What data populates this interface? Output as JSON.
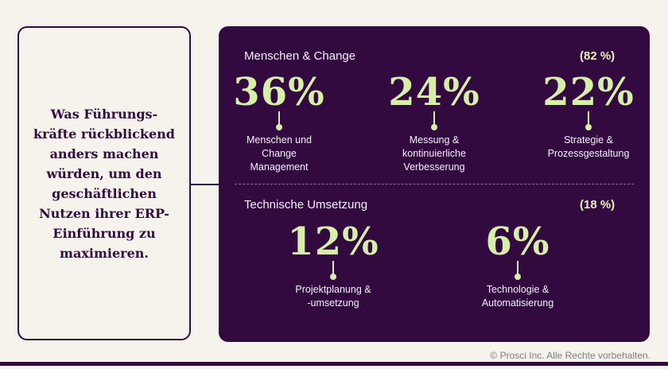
{
  "question": "Was Führungs-kräfte rückblickend anders machen würden, um den geschäftlichen Nutzen ihrer ERP-Einführung zu maximieren.",
  "section1": {
    "title": "Menschen & Change",
    "pct": "(82 %)",
    "items": [
      {
        "value": "36%",
        "label": "Menschen und Change Management"
      },
      {
        "value": "24%",
        "label": "Messung & kontinuierliche Verbesserung"
      },
      {
        "value": "22%",
        "label": "Strategie & Prozessgestaltung"
      }
    ]
  },
  "section2": {
    "title": "Technische Umsetzung",
    "pct": "(18 %)",
    "items": [
      {
        "value": "12%",
        "label": "Projektplanung & -umsetzung"
      },
      {
        "value": "6%",
        "label": "Technologie & Automatisierung"
      }
    ]
  },
  "copyright": "© Prosci Inc. Alle Rechte vorbehalten.",
  "colors": {
    "panel": "#320a40",
    "accent": "#d6efa6",
    "background": "#f6f2ec"
  }
}
